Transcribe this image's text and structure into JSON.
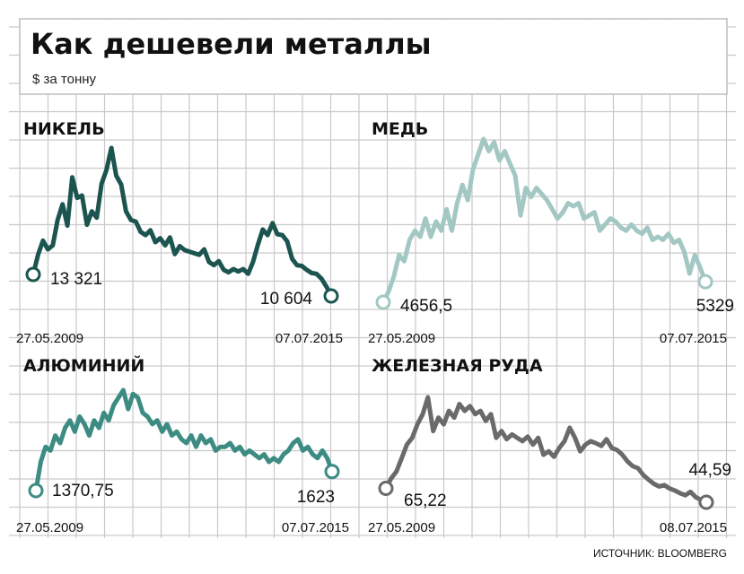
{
  "title": "Как дешевели металлы",
  "subtitle": "$ за тонну",
  "source": "ИСТОЧНИК: BLOOMBERG",
  "chart_data": [
    {
      "type": "line",
      "title": "НИКЕЛЬ",
      "color": "#1c5450",
      "start_date": "27.05.2009",
      "end_date": "07.07.2015",
      "start_label": "13 321",
      "end_label": "10 604",
      "series": [
        {
          "values": [
            13321,
            15800,
            17600,
            16500,
            17000,
            20200,
            22200,
            19500,
            25600,
            23000,
            23300,
            19600,
            21300,
            20500,
            24800,
            26500,
            29300,
            25800,
            24700,
            21300,
            20200,
            20000,
            18700,
            18300,
            18900,
            17400,
            17900,
            17000,
            18000,
            15900,
            16900,
            16400,
            16200,
            16000,
            15800,
            16500,
            14900,
            14500,
            15000,
            13900,
            13600,
            14000,
            13700,
            14000,
            13400,
            14900,
            17100,
            19000,
            18300,
            19800,
            18400,
            18300,
            17500,
            15300,
            14500,
            14400,
            13900,
            13500,
            13400,
            12800,
            11800,
            10604
          ]
        }
      ]
    },
    {
      "type": "line",
      "title": "МЕДЬ",
      "color": "#a3c8c4",
      "start_date": "27.05.2009",
      "end_date": "07.07.2015",
      "start_label": "4656,5",
      "end_label": "5329",
      "series": [
        {
          "values": [
            4656.5,
            5000,
            5500,
            6200,
            6000,
            6700,
            7000,
            6800,
            7400,
            6800,
            7300,
            7000,
            7700,
            7000,
            7900,
            8500,
            8000,
            9000,
            9500,
            10000,
            9600,
            9900,
            9300,
            9600,
            9200,
            8800,
            7500,
            8400,
            8100,
            8400,
            8200,
            8000,
            7700,
            7400,
            7600,
            7900,
            7800,
            7900,
            7400,
            7500,
            7600,
            7000,
            7200,
            7400,
            7300,
            7100,
            7000,
            7200,
            7000,
            6900,
            7100,
            6700,
            6800,
            6700,
            6900,
            6600,
            6700,
            6300,
            5600,
            6200,
            5800,
            5329
          ]
        }
      ]
    },
    {
      "type": "line",
      "title": "АЛЮМИНИЙ",
      "color": "#3d8c83",
      "start_date": "27.05.2009",
      "end_date": "07.07.2015",
      "start_label": "1370,75",
      "end_label": "1623",
      "series": [
        {
          "values": [
            1370.75,
            1750,
            1950,
            1900,
            2100,
            2000,
            2200,
            2300,
            2150,
            2350,
            2250,
            2100,
            2300,
            2200,
            2400,
            2300,
            2500,
            2600,
            2700,
            2450,
            2650,
            2600,
            2400,
            2350,
            2250,
            2300,
            2150,
            2250,
            2100,
            2150,
            2050,
            2000,
            2100,
            1950,
            2100,
            2000,
            2050,
            1900,
            1950,
            1950,
            2000,
            1900,
            1950,
            1850,
            1900,
            1850,
            1800,
            1850,
            1750,
            1800,
            1750,
            1850,
            1900,
            2000,
            2050,
            1900,
            1950,
            1850,
            1800,
            1900,
            1800,
            1623
          ]
        }
      ]
    },
    {
      "type": "line",
      "title": "ЖЕЛЕЗНАЯ РУДА",
      "color": "#6a6a6a",
      "start_date": "27.05.2009",
      "end_date": "08.07.2015",
      "start_label": "65,22",
      "end_label": "44,59",
      "series": [
        {
          "values": [
            65.22,
            80,
            90,
            110,
            130,
            140,
            160,
            175,
            200,
            150,
            170,
            160,
            180,
            170,
            190,
            180,
            187,
            175,
            180,
            165,
            175,
            140,
            150,
            138,
            145,
            140,
            135,
            142,
            130,
            140,
            115,
            120,
            112,
            125,
            135,
            155,
            140,
            120,
            130,
            135,
            132,
            128,
            138,
            125,
            122,
            115,
            105,
            98,
            95,
            85,
            78,
            72,
            68,
            70,
            65,
            62,
            58,
            55,
            60,
            52,
            48,
            44.59
          ]
        }
      ]
    }
  ]
}
